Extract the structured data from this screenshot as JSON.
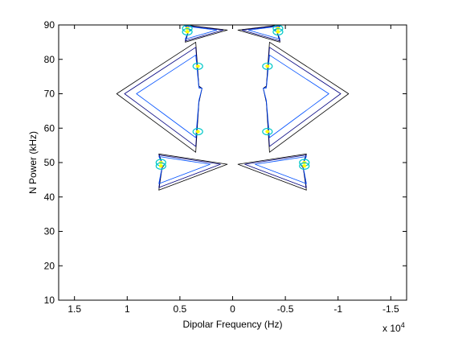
{
  "chart_data": {
    "type": "contour",
    "xlabel": "Dipolar Frequency (Hz)",
    "ylabel": "N Power (kHz)",
    "x_exponent": "x 10",
    "x_exponent_power": "4",
    "xlim": [
      1.65,
      -1.65
    ],
    "ylim": [
      10,
      90
    ],
    "x_reversed": true,
    "grid": false,
    "x_ticks": [
      1.5,
      1,
      0.5,
      0,
      -0.5,
      -1,
      -1.5
    ],
    "x_tick_labels": [
      "1.5",
      "1",
      "0.5",
      "0",
      "-0.5",
      "-1",
      "-1.5"
    ],
    "y_ticks": [
      10,
      20,
      30,
      40,
      50,
      60,
      70,
      80,
      90
    ],
    "y_tick_labels": [
      "10",
      "20",
      "30",
      "40",
      "50",
      "60",
      "70",
      "80",
      "90"
    ],
    "colors": {
      "outer": "#000080",
      "mid": "#0050ff",
      "inner": "#00c8c8",
      "core": "#ffff00",
      "edge": "#000000"
    },
    "features": [
      {
        "name": "chevron-70",
        "center_y": 70,
        "tip_x": 1.1,
        "arm_x": 0.35,
        "arm_top_y": 85,
        "arm_bottom_y": 53,
        "core_y_top": 78,
        "core_y_bottom": 59
      },
      {
        "name": "chevron-49",
        "center_y": 49.5,
        "tip_x": 0.05,
        "arm_x": 0.7,
        "arm_top_y": 52.5,
        "arm_bottom_y": 42,
        "core_y_top": 50,
        "core_y_bottom": 49
      },
      {
        "name": "cap-89",
        "center_y": 88.5,
        "tip_x": 0.05,
        "arm_x": 0.45,
        "arm_top_y": 90,
        "arm_bottom_y": 85,
        "core_y_top": 89,
        "core_y_bottom": 88
      }
    ]
  }
}
